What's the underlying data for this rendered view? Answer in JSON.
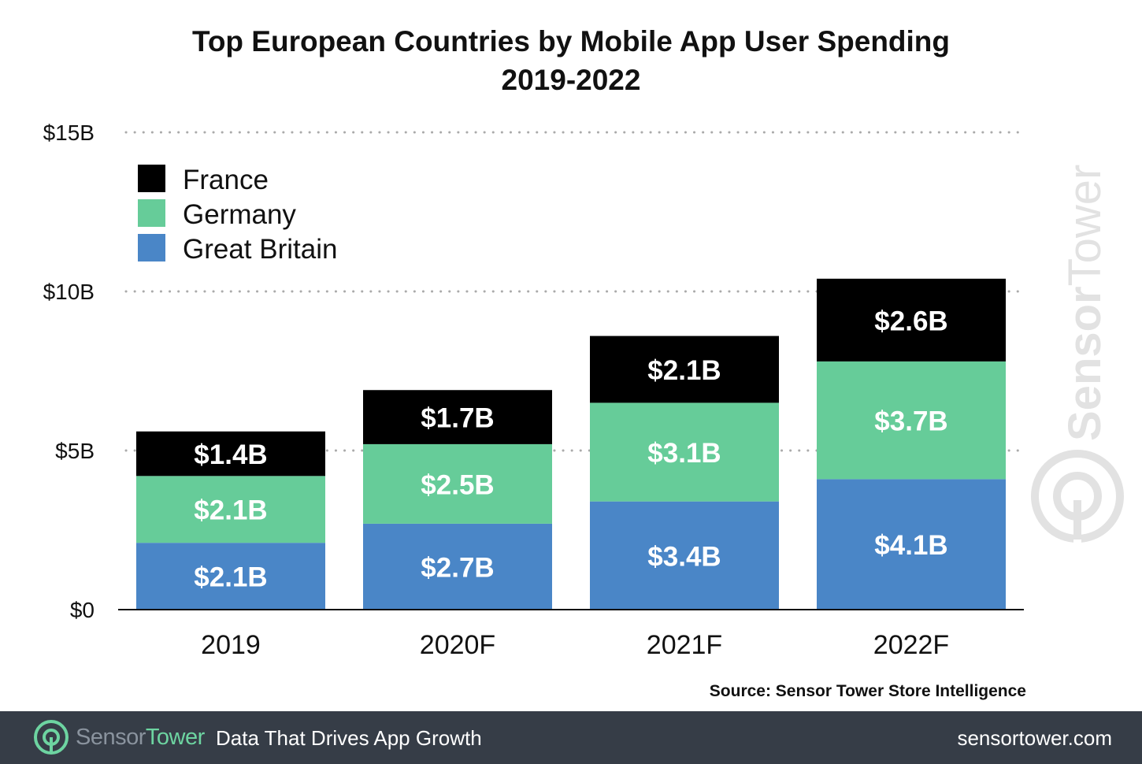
{
  "chart_data": {
    "type": "bar",
    "stacked": true,
    "title": "Top European Countries by Mobile App User Spending",
    "subtitle": "2019-2022",
    "categories": [
      "2019",
      "2020F",
      "2021F",
      "2022F"
    ],
    "series": [
      {
        "name": "Great Britain",
        "color": "#4a86c7",
        "values": [
          2.1,
          2.7,
          3.4,
          4.1
        ],
        "labels": [
          "$2.1B",
          "$2.7B",
          "$3.4B",
          "$4.1B"
        ]
      },
      {
        "name": "Germany",
        "color": "#66cc99",
        "values": [
          2.1,
          2.5,
          3.1,
          3.7
        ],
        "labels": [
          "$2.1B",
          "$2.5B",
          "$3.1B",
          "$3.7B"
        ]
      },
      {
        "name": "France",
        "color": "#000000",
        "values": [
          1.4,
          1.7,
          2.1,
          2.6
        ],
        "labels": [
          "$1.4B",
          "$1.7B",
          "$2.1B",
          "$2.6B"
        ]
      }
    ],
    "y_ticks": [
      {
        "value": 0,
        "label": "$0"
      },
      {
        "value": 5,
        "label": "$5B"
      },
      {
        "value": 10,
        "label": "$10B"
      },
      {
        "value": 15,
        "label": "$15B"
      }
    ],
    "ylim": [
      0,
      15
    ],
    "grid": "dotted horizontal",
    "legend": {
      "placement": "top-left",
      "order": [
        "France",
        "Germany",
        "Great Britain"
      ]
    },
    "source": "Source: Sensor Tower Store Intelligence"
  },
  "footer": {
    "brand_part1": "Sensor",
    "brand_part2": "Tower",
    "tagline": "Data That Drives App Growth",
    "url": "sensortower.com"
  },
  "watermark": {
    "part1": "Sensor",
    "part2": "Tower"
  }
}
